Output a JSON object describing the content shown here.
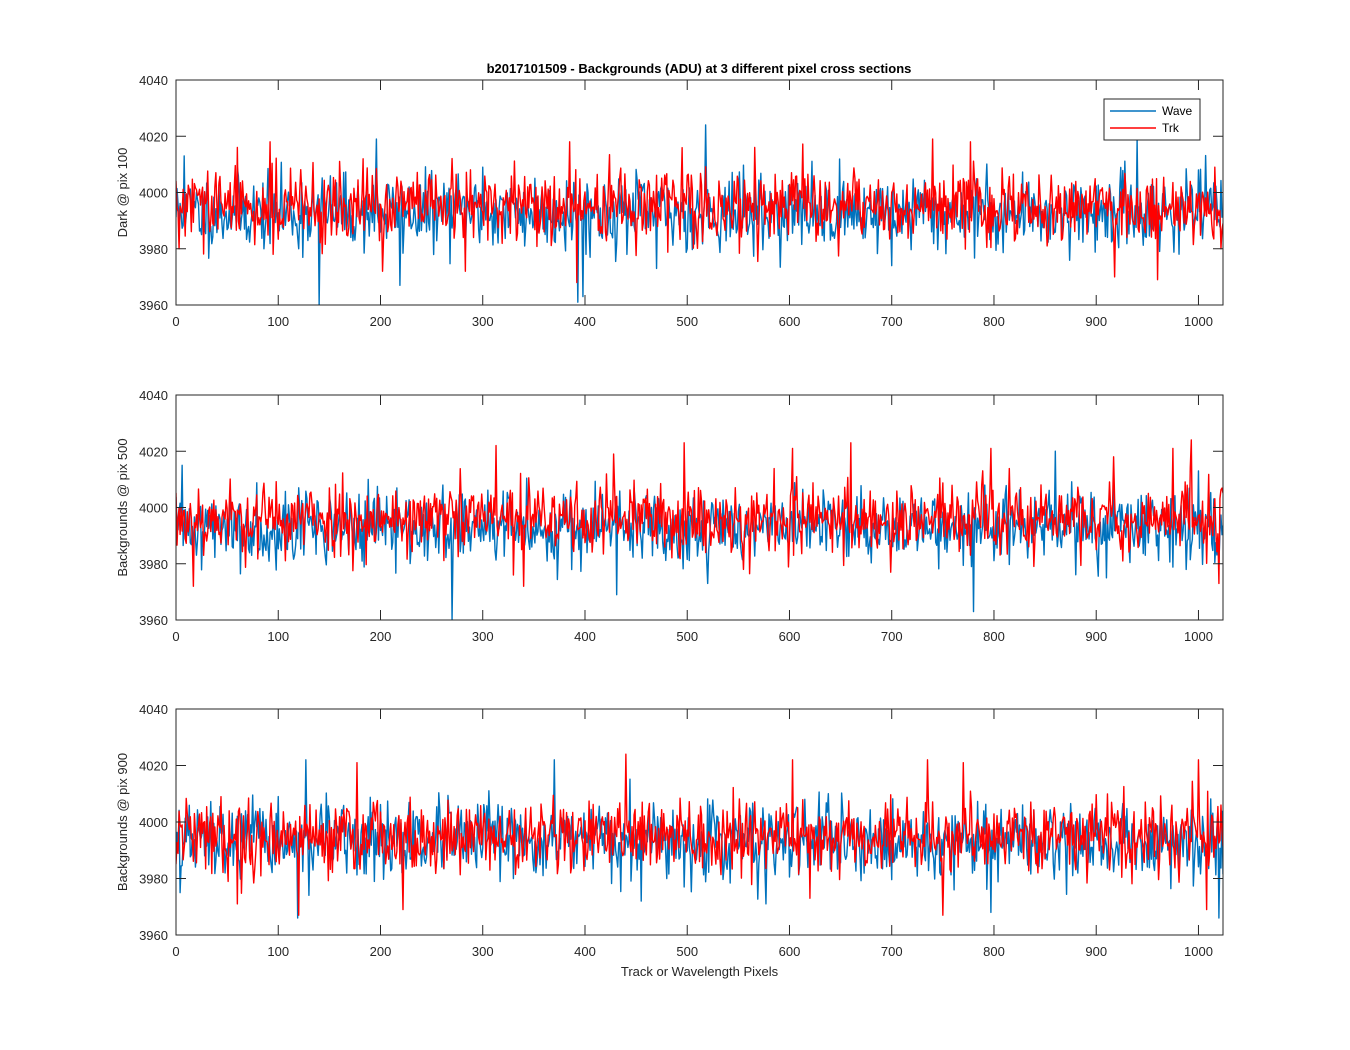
{
  "figure": {
    "title": "b2017101509 - Backgrounds (ADU) at 3 different pixel cross sections"
  },
  "chart_data": [
    {
      "type": "line",
      "ylabel": "Dark @ pix 100",
      "xlabel": "",
      "xlim": [
        0,
        1024
      ],
      "ylim": [
        3960,
        4040
      ],
      "xticks": [
        0,
        100,
        200,
        300,
        400,
        500,
        600,
        700,
        800,
        900,
        1000
      ],
      "yticks": [
        3960,
        3980,
        4000,
        4020,
        4040
      ],
      "legend": {
        "position": "top-right",
        "entries": [
          "Wave",
          "Trk"
        ]
      },
      "series": [
        {
          "name": "Wave",
          "color": "#0072BD",
          "mean": 3993,
          "spread": 6.5,
          "seed": 11,
          "spikes": [
            [
              8,
              4013
            ],
            [
              60,
              4009
            ],
            [
              120,
              3980
            ],
            [
              140,
              3960
            ],
            [
              196,
              4019
            ],
            [
              219,
              3967
            ],
            [
              300,
              4009
            ],
            [
              393,
              3961
            ],
            [
              398,
              3963
            ],
            [
              470,
              3973
            ],
            [
              518,
              4024
            ],
            [
              700,
              3974
            ],
            [
              940,
              4019
            ],
            [
              1000,
              4008
            ],
            [
              1024,
              3993
            ]
          ]
        },
        {
          "name": "Trk",
          "color": "#FF0000",
          "mean": 3995,
          "spread": 6.5,
          "seed": 29,
          "spikes": [
            [
              3,
              3980
            ],
            [
              60,
              4016
            ],
            [
              92,
              4018
            ],
            [
              202,
              3972
            ],
            [
              220,
              4004
            ],
            [
              283,
              3972
            ],
            [
              385,
              4018
            ],
            [
              392,
              3968
            ],
            [
              566,
              4016
            ],
            [
              578,
              3993
            ],
            [
              650,
              3997
            ],
            [
              675,
              3998
            ],
            [
              740,
              4019
            ],
            [
              777,
              4018
            ],
            [
              918,
              3970
            ],
            [
              960,
              3969
            ],
            [
              1016,
              4009
            ],
            [
              1022,
              3980
            ]
          ]
        }
      ]
    },
    {
      "type": "line",
      "ylabel": "Backgrounds @ pix 500",
      "xlabel": "",
      "xlim": [
        0,
        1024
      ],
      "ylim": [
        3960,
        4040
      ],
      "xticks": [
        0,
        100,
        200,
        300,
        400,
        500,
        600,
        700,
        800,
        900,
        1000
      ],
      "yticks": [
        3960,
        3980,
        4000,
        4020,
        4040
      ],
      "legend": null,
      "series": [
        {
          "name": "Wave",
          "color": "#0072BD",
          "mean": 3993,
          "spread": 6.5,
          "seed": 41,
          "spikes": [
            [
              6,
              4015
            ],
            [
              120,
              4007
            ],
            [
              270,
              3960
            ],
            [
              431,
              3969
            ],
            [
              520,
              3973
            ],
            [
              780,
              3963
            ],
            [
              860,
              4020
            ],
            [
              910,
              3975
            ],
            [
              1000,
              4013
            ],
            [
              1020,
              3980
            ]
          ]
        },
        {
          "name": "Trk",
          "color": "#FF0000",
          "mean": 3996,
          "spread": 6.5,
          "seed": 53,
          "spikes": [
            [
              17,
              3972
            ],
            [
              313,
              4022
            ],
            [
              330,
              3976
            ],
            [
              340,
              3972
            ],
            [
              428,
              4019
            ],
            [
              497,
              4023
            ],
            [
              555,
              3978
            ],
            [
              603,
              4021
            ],
            [
              660,
              4023
            ],
            [
              699,
              3977
            ],
            [
              797,
              4021
            ],
            [
              900,
              3985
            ],
            [
              917,
              4018
            ],
            [
              975,
              4021
            ],
            [
              993,
              4024
            ],
            [
              1020,
              3973
            ]
          ]
        }
      ]
    },
    {
      "type": "line",
      "ylabel": "Backgrounds @ pix 900",
      "xlabel": "Track or Wavelength Pixels",
      "xlim": [
        0,
        1024
      ],
      "ylim": [
        3960,
        4040
      ],
      "xticks": [
        0,
        100,
        200,
        300,
        400,
        500,
        600,
        700,
        800,
        900,
        1000
      ],
      "yticks": [
        3960,
        3980,
        4000,
        4020,
        4040
      ],
      "legend": null,
      "series": [
        {
          "name": "Wave",
          "color": "#0072BD",
          "mean": 3993,
          "spread": 6.5,
          "seed": 67,
          "spikes": [
            [
              4,
              3975
            ],
            [
              100,
              4009
            ],
            [
              119,
              3966
            ],
            [
              127,
              4022
            ],
            [
              370,
              4022
            ],
            [
              455,
              3972
            ],
            [
              797,
              3968
            ],
            [
              1020,
              3966
            ]
          ]
        },
        {
          "name": "Trk",
          "color": "#FF0000",
          "mean": 3995,
          "spread": 6.5,
          "seed": 79,
          "spikes": [
            [
              60,
              3971
            ],
            [
              120,
              3967
            ],
            [
              177,
              4021
            ],
            [
              222,
              3969
            ],
            [
              440,
              4024
            ],
            [
              603,
              4022
            ],
            [
              620,
              3973
            ],
            [
              735,
              4022
            ],
            [
              750,
              3967
            ],
            [
              770,
              4021
            ],
            [
              1000,
              4022
            ],
            [
              1008,
              3969
            ],
            [
              1022,
              4006
            ]
          ]
        }
      ]
    }
  ]
}
